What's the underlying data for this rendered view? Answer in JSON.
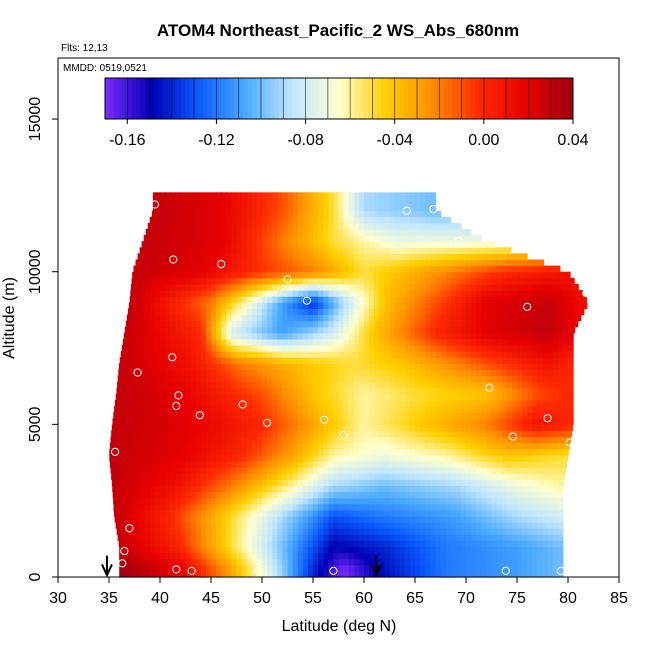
{
  "chart_data": {
    "type": "heatmap",
    "title": "ATOM4 Northeast_Pacific_2 WS_Abs_680nm",
    "flights_label": "Flts: 12,13",
    "dates_label": "MMDD: 0519,0521",
    "xlabel": "Latitude (deg N)",
    "ylabel": "Altitude (m)",
    "xlim": [
      30,
      85
    ],
    "ylim": [
      0,
      17000
    ],
    "xticks": [
      30,
      35,
      40,
      45,
      50,
      55,
      60,
      65,
      70,
      75,
      80,
      85
    ],
    "yticks": [
      0,
      5000,
      10000,
      15000
    ],
    "colorbar": {
      "min": -0.17,
      "max": 0.04,
      "ticks": [
        -0.16,
        -0.12,
        -0.08,
        -0.04,
        0.0,
        0.04
      ],
      "tick_labels": [
        "-0.16",
        "-0.12",
        "-0.08",
        "-0.04",
        "0.00",
        "0.04"
      ],
      "stops": [
        "#7B2BFF",
        "#0000B4",
        "#0A5AFF",
        "#4AAAFF",
        "#C0E6FF",
        "#FFFFD0",
        "#FFD000",
        "#FF8C00",
        "#FF2A00",
        "#E80000",
        "#A00010"
      ]
    },
    "field_rows": [
      {
        "alt": 12000,
        "lat_min": 39.3,
        "lat_max": 67.0,
        "profile": [
          [
            39.3,
            0.03
          ],
          [
            46,
            0.02
          ],
          [
            52,
            -0.01
          ],
          [
            57,
            -0.05
          ],
          [
            60,
            -0.09
          ],
          [
            67,
            -0.1
          ]
        ]
      },
      {
        "alt": 11000,
        "lat_min": 38.3,
        "lat_max": 72.0,
        "profile": [
          [
            38.3,
            0.03
          ],
          [
            46,
            0.02
          ],
          [
            52,
            -0.02
          ],
          [
            57,
            -0.05
          ],
          [
            63,
            -0.07
          ],
          [
            72,
            -0.07
          ]
        ]
      },
      {
        "alt": 10000,
        "lat_min": 37.3,
        "lat_max": 80.0,
        "profile": [
          [
            37.3,
            0.03
          ],
          [
            44,
            0.02
          ],
          [
            49,
            0.0
          ],
          [
            55,
            -0.02
          ],
          [
            60,
            -0.05
          ],
          [
            66,
            -0.03
          ],
          [
            74,
            0.0
          ],
          [
            80,
            0.01
          ]
        ]
      },
      {
        "alt": 9000,
        "lat_min": 37.0,
        "lat_max": 82.0,
        "profile": [
          [
            37,
            0.03
          ],
          [
            45,
            -0.02
          ],
          [
            49,
            -0.07
          ],
          [
            52,
            -0.11
          ],
          [
            55,
            -0.14
          ],
          [
            58,
            -0.09
          ],
          [
            62,
            -0.04
          ],
          [
            67,
            -0.01
          ],
          [
            72,
            0.02
          ],
          [
            78,
            0.03
          ],
          [
            82,
            0.01
          ]
        ]
      },
      {
        "alt": 8000,
        "lat_min": 36.5,
        "lat_max": 80.5,
        "profile": [
          [
            36.5,
            0.03
          ],
          [
            44,
            0.0
          ],
          [
            47,
            -0.08
          ],
          [
            52,
            -0.11
          ],
          [
            57,
            -0.08
          ],
          [
            61,
            -0.04
          ],
          [
            67,
            0.0
          ],
          [
            72,
            0.02
          ],
          [
            78,
            0.03
          ],
          [
            80.5,
            0.02
          ]
        ]
      },
      {
        "alt": 7000,
        "lat_min": 36.0,
        "lat_max": 80.5,
        "profile": [
          [
            36,
            0.03
          ],
          [
            43,
            0.01
          ],
          [
            48,
            -0.02
          ],
          [
            54,
            -0.04
          ],
          [
            59,
            -0.05
          ],
          [
            64,
            -0.04
          ],
          [
            72,
            -0.01
          ],
          [
            78,
            0.01
          ],
          [
            80.5,
            0.0
          ]
        ]
      },
      {
        "alt": 6000,
        "lat_min": 35.7,
        "lat_max": 80.5,
        "profile": [
          [
            35.7,
            0.03
          ],
          [
            42,
            0.02
          ],
          [
            50,
            -0.01
          ],
          [
            55,
            -0.04
          ],
          [
            60,
            -0.06
          ],
          [
            65,
            -0.05
          ],
          [
            72,
            -0.04
          ],
          [
            77,
            -0.01
          ],
          [
            80.5,
            0.0
          ]
        ]
      },
      {
        "alt": 5000,
        "lat_min": 35.3,
        "lat_max": 80.5,
        "profile": [
          [
            35.3,
            0.03
          ],
          [
            43,
            0.02
          ],
          [
            50,
            0.0
          ],
          [
            55,
            -0.03
          ],
          [
            60,
            -0.06
          ],
          [
            66,
            -0.04
          ],
          [
            72,
            -0.02
          ],
          [
            77,
            0.01
          ],
          [
            80.5,
            0.0
          ]
        ]
      },
      {
        "alt": 4000,
        "lat_min": 35.0,
        "lat_max": 80.0,
        "profile": [
          [
            35,
            0.03
          ],
          [
            42,
            0.02
          ],
          [
            48,
            0.0
          ],
          [
            53,
            -0.03
          ],
          [
            57,
            -0.06
          ],
          [
            62,
            -0.07
          ],
          [
            68,
            -0.06
          ],
          [
            74,
            -0.04
          ],
          [
            80,
            -0.05
          ]
        ]
      },
      {
        "alt": 3000,
        "lat_min": 35.3,
        "lat_max": 79.5,
        "profile": [
          [
            35.3,
            0.03
          ],
          [
            42,
            0.01
          ],
          [
            47,
            -0.02
          ],
          [
            53,
            -0.06
          ],
          [
            57,
            -0.09
          ],
          [
            62,
            -0.1
          ],
          [
            69,
            -0.09
          ],
          [
            75,
            -0.07
          ],
          [
            79.5,
            -0.06
          ]
        ]
      },
      {
        "alt": 2000,
        "lat_min": 35.5,
        "lat_max": 79.5,
        "profile": [
          [
            35.5,
            0.03
          ],
          [
            41,
            0.0
          ],
          [
            46,
            -0.04
          ],
          [
            52,
            -0.09
          ],
          [
            57,
            -0.13
          ],
          [
            62,
            -0.12
          ],
          [
            69,
            -0.11
          ],
          [
            75,
            -0.09
          ],
          [
            79.5,
            -0.08
          ]
        ]
      },
      {
        "alt": 1000,
        "lat_min": 36.0,
        "lat_max": 79.5,
        "profile": [
          [
            36,
            0.03
          ],
          [
            42,
            0.0
          ],
          [
            47,
            -0.05
          ],
          [
            52,
            -0.1
          ],
          [
            57,
            -0.15
          ],
          [
            62,
            -0.14
          ],
          [
            68,
            -0.12
          ],
          [
            75,
            -0.11
          ],
          [
            79.5,
            -0.1
          ]
        ]
      },
      {
        "alt": 250,
        "lat_min": 36.0,
        "lat_max": 79.5,
        "profile": [
          [
            36,
            0.04
          ],
          [
            42,
            0.02
          ],
          [
            47,
            -0.03
          ],
          [
            51,
            -0.08
          ],
          [
            55,
            -0.14
          ],
          [
            58,
            -0.17
          ],
          [
            61,
            -0.15
          ],
          [
            68,
            -0.12
          ],
          [
            75,
            -0.11
          ],
          [
            79.5,
            -0.1
          ]
        ]
      }
    ],
    "observation_points": [
      {
        "lat": 39.5,
        "alt": 12200
      },
      {
        "lat": 64.2,
        "alt": 12000
      },
      {
        "lat": 66.8,
        "alt": 12050
      },
      {
        "lat": 69.3,
        "alt": 11000
      },
      {
        "lat": 41.3,
        "alt": 10400
      },
      {
        "lat": 46.0,
        "alt": 10250
      },
      {
        "lat": 52.5,
        "alt": 9750
      },
      {
        "lat": 54.4,
        "alt": 9050
      },
      {
        "lat": 59.4,
        "alt": 9050
      },
      {
        "lat": 81.8,
        "alt": 9300
      },
      {
        "lat": 76.0,
        "alt": 8850
      },
      {
        "lat": 37.8,
        "alt": 6700
      },
      {
        "lat": 41.2,
        "alt": 7200
      },
      {
        "lat": 41.8,
        "alt": 5950
      },
      {
        "lat": 41.6,
        "alt": 5600
      },
      {
        "lat": 48.1,
        "alt": 5650
      },
      {
        "lat": 43.9,
        "alt": 5300
      },
      {
        "lat": 50.5,
        "alt": 5050
      },
      {
        "lat": 56.1,
        "alt": 5150
      },
      {
        "lat": 58.0,
        "alt": 4650
      },
      {
        "lat": 72.3,
        "alt": 6200
      },
      {
        "lat": 78.0,
        "alt": 5200
      },
      {
        "lat": 74.6,
        "alt": 4600
      },
      {
        "lat": 80.2,
        "alt": 4400
      },
      {
        "lat": 35.6,
        "alt": 4100
      },
      {
        "lat": 37.0,
        "alt": 1600
      },
      {
        "lat": 36.5,
        "alt": 850
      },
      {
        "lat": 36.3,
        "alt": 450
      },
      {
        "lat": 41.6,
        "alt": 250
      },
      {
        "lat": 43.1,
        "alt": 200
      },
      {
        "lat": 49.6,
        "alt": 200
      },
      {
        "lat": 57.0,
        "alt": 200
      },
      {
        "lat": 73.9,
        "alt": 200
      },
      {
        "lat": 79.3,
        "alt": 200
      }
    ],
    "arrows": [
      {
        "lat": 34.8
      },
      {
        "lat": 61.2
      }
    ]
  }
}
